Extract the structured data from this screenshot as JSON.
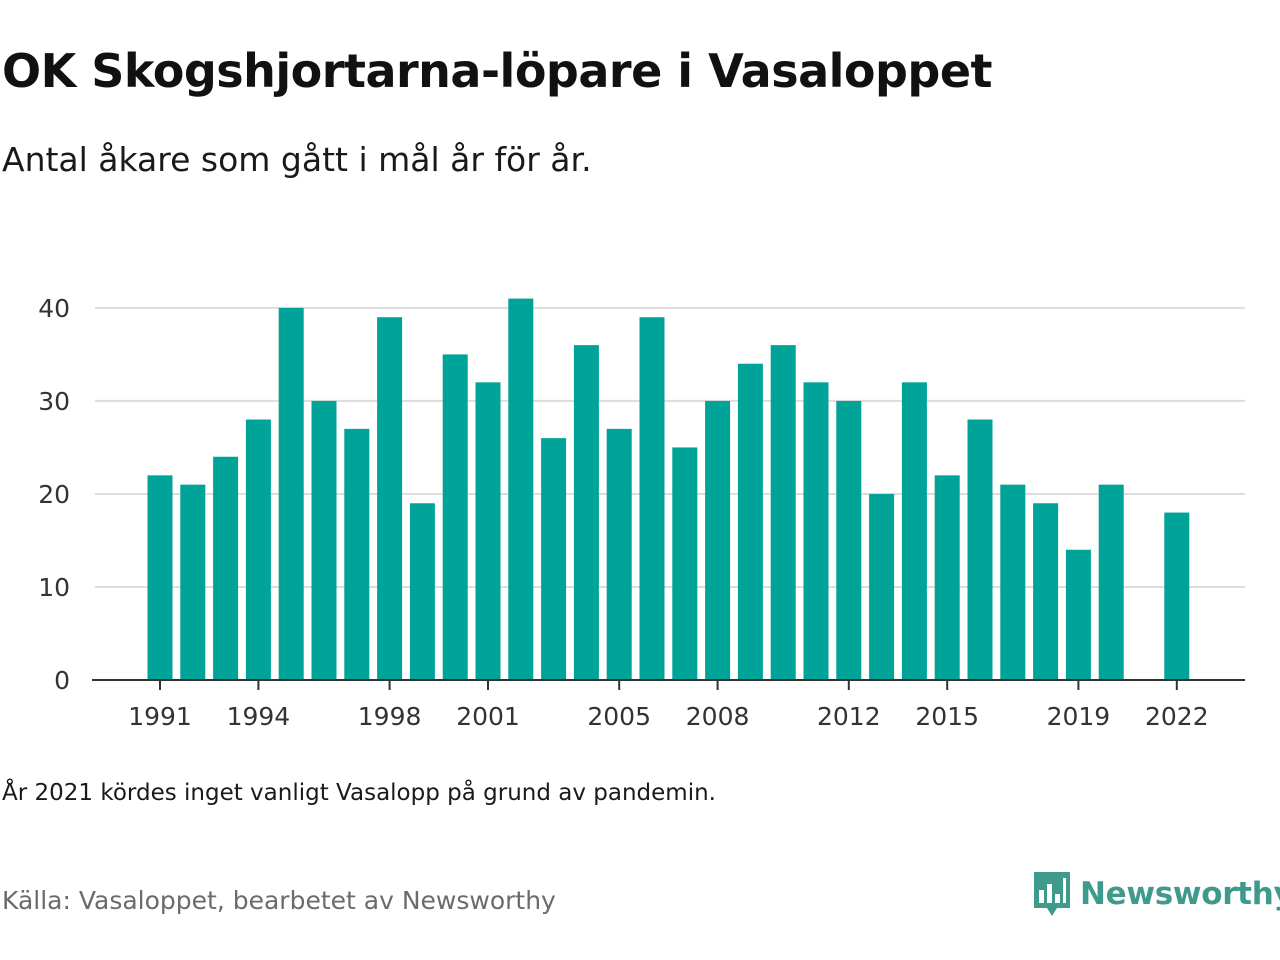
{
  "header": {
    "title": "OK Skogshjortarna-löpare i Vasaloppet",
    "subtitle": "Antal åkare som gått i mål år för år."
  },
  "chart_data": {
    "type": "bar",
    "categories": [
      1991,
      1992,
      1993,
      1994,
      1995,
      1996,
      1997,
      1998,
      1999,
      2000,
      2001,
      2002,
      2003,
      2004,
      2005,
      2006,
      2007,
      2008,
      2009,
      2010,
      2011,
      2012,
      2013,
      2014,
      2015,
      2016,
      2017,
      2018,
      2019,
      2020,
      2021,
      2022
    ],
    "values": [
      22,
      21,
      24,
      28,
      40,
      30,
      27,
      39,
      19,
      35,
      32,
      41,
      26,
      36,
      27,
      39,
      25,
      30,
      34,
      36,
      32,
      30,
      20,
      32,
      22,
      28,
      21,
      19,
      14,
      21,
      null,
      18
    ],
    "x_tick_labels": [
      "1991",
      "1994",
      "1998",
      "2001",
      "2005",
      "2008",
      "2012",
      "2015",
      "2019",
      "2022"
    ],
    "y_ticks": [
      "0",
      "10",
      "20",
      "30",
      "40"
    ],
    "ylim": [
      0,
      43
    ],
    "grid": true,
    "bar_color": "#00a398"
  },
  "footer": {
    "note": "År 2021 kördes inget vanligt Vasalopp på grund av pandemin.",
    "source": "Källa: Vasaloppet, bearbetet av Newsworthy",
    "brand": "Newsworthy",
    "brand_icon": "newsworthy-logo-icon",
    "brand_color": "#3f9a8e"
  }
}
